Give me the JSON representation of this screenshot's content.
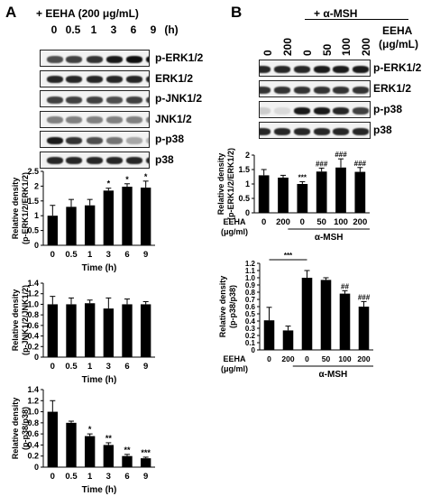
{
  "panel_a": {
    "letter": "A",
    "treatment": "+ EEHA (200 μg/mL)",
    "lanes": [
      "0",
      "0.5",
      "1",
      "3",
      "6",
      "9"
    ],
    "lane_unit": "(h)",
    "blots": [
      "p-ERK1/2",
      "ERK1/2",
      "p-JNK1/2",
      "JNK1/2",
      "p-p38",
      "p38"
    ]
  },
  "panel_b": {
    "letter": "B",
    "treatment": "+ α-MSH",
    "eeha_label": "EEHA",
    "eeha_unit": "(μg/mL)",
    "lanes": [
      "0",
      "200",
      "0",
      "50",
      "100",
      "200"
    ],
    "blots": [
      "p-ERK1/2",
      "ERK1/2",
      "p-p38",
      "p38"
    ]
  },
  "chart_data": [
    {
      "type": "bar",
      "panel": "A",
      "categories": [
        "0",
        "0.5",
        "1",
        "3",
        "6",
        "9"
      ],
      "values": [
        1.0,
        1.3,
        1.35,
        1.85,
        1.98,
        1.95
      ],
      "errors": [
        0.35,
        0.25,
        0.2,
        0.08,
        0.1,
        0.22
      ],
      "annotations": [
        "",
        "",
        "",
        "*",
        "*",
        "*"
      ],
      "xlabel": "Time (h)",
      "ylabel": "Relative density (p-ERK1/2/ERK1/2)",
      "ylim": [
        0,
        2.5
      ],
      "yticks": [
        "0",
        "0.5",
        "1",
        "1.5",
        "2",
        "2.5"
      ]
    },
    {
      "type": "bar",
      "panel": "A",
      "categories": [
        "0",
        "0.5",
        "1",
        "3",
        "6",
        "9"
      ],
      "values": [
        1.0,
        1.0,
        1.02,
        0.92,
        1.0,
        1.0
      ],
      "errors": [
        0.15,
        0.12,
        0.06,
        0.2,
        0.1,
        0.05
      ],
      "annotations": [
        "",
        "",
        "",
        "",
        "",
        ""
      ],
      "xlabel": "Time (h)",
      "ylabel": "Relative density (p-JNK1/2/JNK1/2)",
      "ylim": [
        0,
        1.4
      ],
      "yticks": [
        "0",
        "0.2",
        "0.4",
        "0.6",
        "0.8",
        "1.0",
        "1.2",
        "1.4"
      ]
    },
    {
      "type": "bar",
      "panel": "A",
      "categories": [
        "0",
        "0.5",
        "1",
        "3",
        "6",
        "9"
      ],
      "values": [
        1.0,
        0.8,
        0.56,
        0.4,
        0.2,
        0.16
      ],
      "errors": [
        0.2,
        0.03,
        0.04,
        0.04,
        0.03,
        0.02
      ],
      "annotations": [
        "",
        "",
        "*",
        "**",
        "**",
        "***"
      ],
      "xlabel": "Time (h)",
      "ylabel": "Relative density (p-p38/p38)",
      "ylim": [
        0,
        1.4
      ],
      "yticks": [
        "0",
        "0.2",
        "0.4",
        "0.6",
        "0.8",
        "1.0",
        "1.2",
        "1.4"
      ]
    },
    {
      "type": "bar",
      "panel": "B",
      "categories": [
        "0",
        "200",
        "0",
        "50",
        "100",
        "200"
      ],
      "values": [
        1.3,
        1.22,
        1.0,
        1.43,
        1.57,
        1.42
      ],
      "errors": [
        0.2,
        0.08,
        0.08,
        0.12,
        0.3,
        0.15
      ],
      "annotations": [
        "",
        "",
        "***",
        "###",
        "###",
        "###"
      ],
      "xlabel": "",
      "ylabel": "Relative density (p-ERK1/2/ERK1/2)",
      "ylim": [
        0,
        2
      ],
      "yticks": [
        "0",
        "0.5",
        "1",
        "1.5",
        "2"
      ],
      "group_row_label": "EEHA (μg/ml)",
      "group_label": "α-MSH"
    },
    {
      "type": "bar",
      "panel": "B",
      "categories": [
        "0",
        "200",
        "0",
        "50",
        "100",
        "200"
      ],
      "values": [
        0.41,
        0.27,
        1.0,
        0.97,
        0.78,
        0.6
      ],
      "errors": [
        0.18,
        0.06,
        0.1,
        0.03,
        0.04,
        0.07
      ],
      "annotations": [
        "",
        "",
        "",
        "",
        "##",
        "###"
      ],
      "bracket": {
        "from": 0,
        "to": 2,
        "label": "***"
      },
      "xlabel": "",
      "ylabel": "Relative density (p-p38/p38)",
      "ylim": [
        0,
        1.2
      ],
      "yticks": [
        "0",
        "0.1",
        "0.2",
        "0.3",
        "0.4",
        "0.5",
        "0.6",
        "0.7",
        "0.8",
        "0.9",
        "1.0",
        "1.1",
        "1.2"
      ],
      "group_row_label": "EEHA (μg/ml)",
      "group_label": "α-MSH"
    }
  ]
}
